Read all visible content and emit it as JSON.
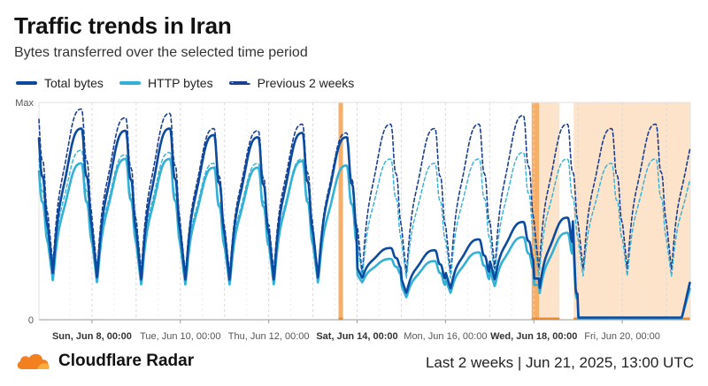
{
  "title": "Traffic trends in Iran",
  "subtitle": "Bytes transferred over the selected time period",
  "legend": [
    {
      "label": "Total bytes",
      "color": "#0b4a9e",
      "style": "solid"
    },
    {
      "label": "HTTP bytes",
      "color": "#33b0d6",
      "style": "solid"
    },
    {
      "label": "Previous 2 weeks",
      "color": "#1c3f8f",
      "style": "dashed"
    }
  ],
  "footer": {
    "brand": "Cloudflare Radar",
    "period": "Last 2 weeks | Jun 21, 2025, 13:00 UTC"
  },
  "colors": {
    "total": "#0b4a9e",
    "http": "#33b0d6",
    "previous_total": "#1c3f8f",
    "previous_http": "#33b0d6",
    "highlight": "#f6a04d",
    "highlight_light": "#fbd9b8",
    "grid": "#d9d9d9",
    "cloudflare_orange": "#f38020"
  },
  "chart_data": {
    "type": "line",
    "title": "Traffic trends in Iran",
    "subtitle": "Bytes transferred over the selected time period",
    "x_unit": "days since Sun, Jun 8, 00:00 UTC",
    "xlim": [
      -1.2,
      13.54
    ],
    "ylim": [
      0,
      1
    ],
    "y_tick_labels": [
      "0",
      "Max"
    ],
    "x_ticks": [
      {
        "x": 0,
        "label": "Sun, Jun 8, 00:00",
        "bold": true
      },
      {
        "x": 2,
        "label": "Tue, Jun 10, 00:00",
        "bold": false
      },
      {
        "x": 4,
        "label": "Thu, Jun 12, 00:00",
        "bold": false
      },
      {
        "x": 6,
        "label": "Sat, Jun 14, 00:00",
        "bold": true
      },
      {
        "x": 8,
        "label": "Mon, Jun 16, 00:00",
        "bold": false
      },
      {
        "x": 10,
        "label": "Wed, Jun 18, 00:00",
        "bold": true
      },
      {
        "x": 12,
        "label": "Fri, Jun 20, 00:00",
        "bold": false
      }
    ],
    "grid": true,
    "legend_position": "top-left",
    "highlights": [
      {
        "x0": 5.58,
        "x1": 5.68,
        "style": "strong"
      },
      {
        "x0": 9.95,
        "x1": 10.12,
        "style": "strong"
      },
      {
        "x0": 10.12,
        "x1": 10.58,
        "style": "light"
      },
      {
        "x0": 10.9,
        "x1": 13.54,
        "style": "light"
      }
    ],
    "series": [
      {
        "name": "Total bytes",
        "style": "solid",
        "daily_profile": [
          {
            "day": -1,
            "min": 0.2,
            "max": 0.88
          },
          {
            "day": 0,
            "min": 0.18,
            "max": 0.87
          },
          {
            "day": 1,
            "min": 0.17,
            "max": 0.88
          },
          {
            "day": 2,
            "min": 0.17,
            "max": 0.85
          },
          {
            "day": 3,
            "min": 0.17,
            "max": 0.84
          },
          {
            "day": 4,
            "min": 0.17,
            "max": 0.86
          },
          {
            "day": 5,
            "min": 0.18,
            "max": 0.84
          },
          {
            "day": 6,
            "min": 0.19,
            "max": 0.33
          },
          {
            "day": 7,
            "min": 0.12,
            "max": 0.32
          },
          {
            "day": 8,
            "min": 0.14,
            "max": 0.37
          },
          {
            "day": 9,
            "min": 0.18,
            "max": 0.45
          },
          {
            "day": 10,
            "min": 0.12,
            "max": 0.47
          },
          {
            "day": 11,
            "min": 0.01,
            "max": 0.01
          },
          {
            "day": 12,
            "min": 0.01,
            "max": 0.01
          },
          {
            "day": 13,
            "min": 0.01,
            "max": 0.18
          }
        ]
      },
      {
        "name": "HTTP bytes",
        "style": "solid",
        "daily_profile": [
          {
            "day": -1,
            "min": 0.17,
            "max": 0.72
          },
          {
            "day": 0,
            "min": 0.16,
            "max": 0.74
          },
          {
            "day": 1,
            "min": 0.15,
            "max": 0.74
          },
          {
            "day": 2,
            "min": 0.15,
            "max": 0.7
          },
          {
            "day": 3,
            "min": 0.15,
            "max": 0.7
          },
          {
            "day": 4,
            "min": 0.15,
            "max": 0.73
          },
          {
            "day": 5,
            "min": 0.16,
            "max": 0.71
          },
          {
            "day": 6,
            "min": 0.17,
            "max": 0.28
          },
          {
            "day": 7,
            "min": 0.1,
            "max": 0.27
          },
          {
            "day": 8,
            "min": 0.12,
            "max": 0.31
          },
          {
            "day": 9,
            "min": 0.15,
            "max": 0.38
          },
          {
            "day": 10,
            "min": 0.1,
            "max": 0.4
          },
          {
            "day": 11,
            "min": 0.005,
            "max": 0.005
          },
          {
            "day": 12,
            "min": 0.005,
            "max": 0.005
          },
          {
            "day": 13,
            "min": 0.005,
            "max": 0.15
          }
        ]
      },
      {
        "name": "Previous 2 weeks",
        "style": "dashed",
        "daily_profile": [
          {
            "day": -1,
            "min": 0.24,
            "max": 0.97
          },
          {
            "day": 0,
            "min": 0.22,
            "max": 0.93
          },
          {
            "day": 1,
            "min": 0.21,
            "max": 0.95
          },
          {
            "day": 2,
            "min": 0.2,
            "max": 0.88
          },
          {
            "day": 3,
            "min": 0.2,
            "max": 0.87
          },
          {
            "day": 4,
            "min": 0.21,
            "max": 0.9
          },
          {
            "day": 5,
            "min": 0.2,
            "max": 0.86
          },
          {
            "day": 6,
            "min": 0.2,
            "max": 0.9
          },
          {
            "day": 7,
            "min": 0.2,
            "max": 0.88
          },
          {
            "day": 8,
            "min": 0.2,
            "max": 0.9
          },
          {
            "day": 9,
            "min": 0.22,
            "max": 0.94
          },
          {
            "day": 10,
            "min": 0.22,
            "max": 0.9
          },
          {
            "day": 11,
            "min": 0.22,
            "max": 0.88
          },
          {
            "day": 12,
            "min": 0.22,
            "max": 0.9
          },
          {
            "day": 13,
            "min": 0.22,
            "max": 0.87
          }
        ]
      },
      {
        "name": "",
        "style": "dashed",
        "daily_profile": [
          {
            "day": -1,
            "min": 0.2,
            "max": 0.78
          },
          {
            "day": 0,
            "min": 0.19,
            "max": 0.76
          },
          {
            "day": 1,
            "min": 0.18,
            "max": 0.77
          },
          {
            "day": 2,
            "min": 0.18,
            "max": 0.72
          },
          {
            "day": 3,
            "min": 0.18,
            "max": 0.72
          },
          {
            "day": 4,
            "min": 0.18,
            "max": 0.74
          },
          {
            "day": 5,
            "min": 0.18,
            "max": 0.71
          },
          {
            "day": 6,
            "min": 0.18,
            "max": 0.74
          },
          {
            "day": 7,
            "min": 0.18,
            "max": 0.72
          },
          {
            "day": 8,
            "min": 0.18,
            "max": 0.74
          },
          {
            "day": 9,
            "min": 0.19,
            "max": 0.77
          },
          {
            "day": 10,
            "min": 0.19,
            "max": 0.74
          },
          {
            "day": 11,
            "min": 0.19,
            "max": 0.72
          },
          {
            "day": 12,
            "min": 0.19,
            "max": 0.74
          },
          {
            "day": 13,
            "min": 0.19,
            "max": 0.71
          }
        ]
      }
    ]
  }
}
